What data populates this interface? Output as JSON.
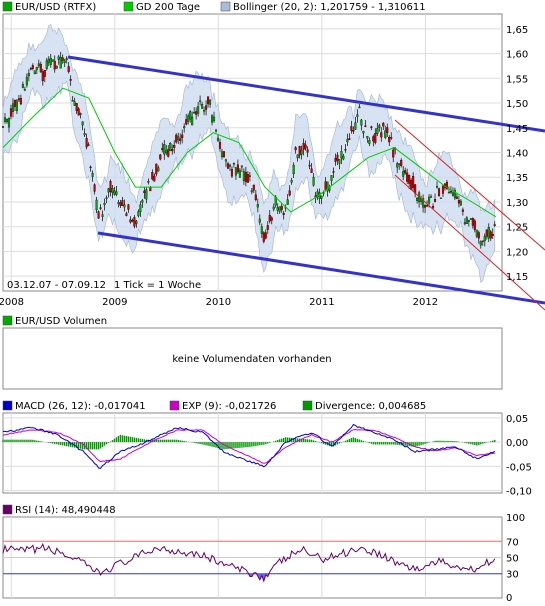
{
  "main": {
    "legend": [
      {
        "label": "EUR/USD (RTFX)",
        "color": "#00aa00"
      },
      {
        "label": "GD 200 Tage",
        "color": "#00cc00"
      },
      {
        "label": "Bollinger (20, 2): 1,201759 - 1,310611",
        "color": "#a9bcdc"
      }
    ],
    "date_range": "03.12.07 - 07.09.12",
    "tick_note": "1 Tick = 1 Woche"
  },
  "volume": {
    "legend": {
      "label": "EUR/USD Volumen",
      "color": "#00aa00"
    },
    "message": "keine Volumendaten vorhanden"
  },
  "macd": {
    "legend": [
      {
        "label": "MACD (26, 12): -0,017041",
        "color": "#0000cc"
      },
      {
        "label": "EXP (9): -0,021726",
        "color": "#cc00cc"
      },
      {
        "label": "Divergence: 0,004685",
        "color": "#009900"
      }
    ]
  },
  "rsi": {
    "legend": {
      "label": "RSI (14): 48,490448",
      "color": "#660066"
    }
  },
  "chart_data": [
    {
      "type": "line",
      "title": "EUR/USD (RTFX)",
      "subtitle": "03.12.07 - 07.09.12",
      "x_labels": [
        "2008",
        "2009",
        "2010",
        "2011",
        "2012"
      ],
      "ylim": [
        1.12,
        1.68
      ],
      "y_ticks": [
        "1,15",
        "1,20",
        "1,25",
        "1,30",
        "1,35",
        "1,40",
        "1,45",
        "1,50",
        "1,55",
        "1,60",
        "1,65"
      ],
      "y_tick_values": [
        1.15,
        1.2,
        1.25,
        1.3,
        1.35,
        1.4,
        1.45,
        1.5,
        1.55,
        1.6,
        1.65
      ],
      "grid": true,
      "series": [
        {
          "name": "EUR/USD (RTFX)",
          "x": [
            2007.92,
            2008.0,
            2008.1,
            2008.2,
            2008.3,
            2008.45,
            2008.55,
            2008.6,
            2008.7,
            2008.75,
            2008.85,
            2008.95,
            2009.05,
            2009.15,
            2009.2,
            2009.35,
            2009.45,
            2009.55,
            2009.7,
            2009.8,
            2009.9,
            2010.0,
            2010.1,
            2010.25,
            2010.35,
            2010.45,
            2010.55,
            2010.65,
            2010.75,
            2010.85,
            2010.95,
            2011.05,
            2011.15,
            2011.3,
            2011.35,
            2011.45,
            2011.6,
            2011.7,
            2011.8,
            2011.9,
            2012.0,
            2012.1,
            2012.2,
            2012.3,
            2012.4,
            2012.5,
            2012.55,
            2012.6,
            2012.68
          ],
          "values": [
            1.45,
            1.47,
            1.52,
            1.57,
            1.56,
            1.59,
            1.57,
            1.5,
            1.46,
            1.4,
            1.27,
            1.33,
            1.3,
            1.27,
            1.26,
            1.34,
            1.4,
            1.41,
            1.46,
            1.48,
            1.5,
            1.43,
            1.37,
            1.36,
            1.32,
            1.22,
            1.3,
            1.28,
            1.4,
            1.42,
            1.31,
            1.33,
            1.38,
            1.44,
            1.48,
            1.43,
            1.45,
            1.4,
            1.35,
            1.33,
            1.29,
            1.31,
            1.33,
            1.31,
            1.26,
            1.24,
            1.21,
            1.23,
            1.25
          ]
        },
        {
          "name": "GD 200 Tage",
          "x": [
            2007.92,
            2008.2,
            2008.5,
            2008.75,
            2009.0,
            2009.2,
            2009.45,
            2009.7,
            2009.95,
            2010.2,
            2010.45,
            2010.7,
            2010.95,
            2011.2,
            2011.45,
            2011.7,
            2011.95,
            2012.2,
            2012.45,
            2012.68
          ],
          "values": [
            1.41,
            1.47,
            1.53,
            1.51,
            1.4,
            1.33,
            1.33,
            1.4,
            1.44,
            1.42,
            1.33,
            1.28,
            1.31,
            1.35,
            1.39,
            1.41,
            1.37,
            1.33,
            1.3,
            1.27
          ]
        }
      ]
    },
    {
      "type": "line",
      "title": "MACD (26, 12)",
      "ylim": [
        -0.105,
        0.06
      ],
      "y_ticks": [
        "0,05",
        "0,00",
        "-0,05",
        "-0,10"
      ],
      "y_tick_values": [
        0.05,
        0.0,
        -0.05,
        -0.1
      ],
      "series": [
        {
          "name": "MACD (26, 12)",
          "x": [
            2007.92,
            2008.2,
            2008.45,
            2008.7,
            2008.85,
            2009.05,
            2009.3,
            2009.6,
            2009.85,
            2010.05,
            2010.3,
            2010.45,
            2010.65,
            2010.9,
            2011.1,
            2011.3,
            2011.5,
            2011.7,
            2011.9,
            2012.1,
            2012.3,
            2012.5,
            2012.68
          ],
          "values": [
            0.02,
            0.03,
            0.015,
            -0.02,
            -0.055,
            -0.02,
            0.0,
            0.03,
            0.02,
            -0.02,
            -0.04,
            -0.05,
            0.0,
            0.02,
            -0.01,
            0.035,
            0.02,
            0.005,
            -0.02,
            -0.015,
            -0.01,
            -0.035,
            -0.017
          ]
        },
        {
          "name": "EXP (9)",
          "x": [
            2007.92,
            2008.2,
            2008.45,
            2008.7,
            2008.85,
            2009.05,
            2009.3,
            2009.6,
            2009.85,
            2010.05,
            2010.3,
            2010.45,
            2010.65,
            2010.9,
            2011.1,
            2011.3,
            2011.5,
            2011.7,
            2011.9,
            2012.1,
            2012.3,
            2012.5,
            2012.68
          ],
          "values": [
            0.015,
            0.025,
            0.02,
            -0.005,
            -0.04,
            -0.035,
            -0.005,
            0.025,
            0.025,
            -0.005,
            -0.03,
            -0.045,
            -0.01,
            0.015,
            0.0,
            0.025,
            0.025,
            0.01,
            -0.01,
            -0.018,
            -0.012,
            -0.028,
            -0.022
          ]
        }
      ]
    },
    {
      "type": "line",
      "title": "RSI (14)",
      "ylim": [
        0,
        100
      ],
      "y_ticks": [
        "100",
        "70",
        "50",
        "30",
        "0"
      ],
      "y_tick_values": [
        100,
        70,
        50,
        30,
        0
      ],
      "series": [
        {
          "name": "RSI (14)",
          "x": [
            2007.92,
            2008.1,
            2008.3,
            2008.5,
            2008.7,
            2008.85,
            2009.0,
            2009.2,
            2009.4,
            2009.6,
            2009.8,
            2010.0,
            2010.2,
            2010.35,
            2010.45,
            2010.6,
            2010.8,
            2011.0,
            2011.2,
            2011.35,
            2011.55,
            2011.75,
            2011.95,
            2012.1,
            2012.3,
            2012.45,
            2012.6,
            2012.68
          ],
          "values": [
            60,
            58,
            62,
            55,
            42,
            30,
            40,
            50,
            62,
            58,
            55,
            45,
            35,
            30,
            25,
            45,
            60,
            48,
            55,
            62,
            55,
            42,
            35,
            45,
            40,
            35,
            45,
            48
          ]
        }
      ]
    }
  ]
}
